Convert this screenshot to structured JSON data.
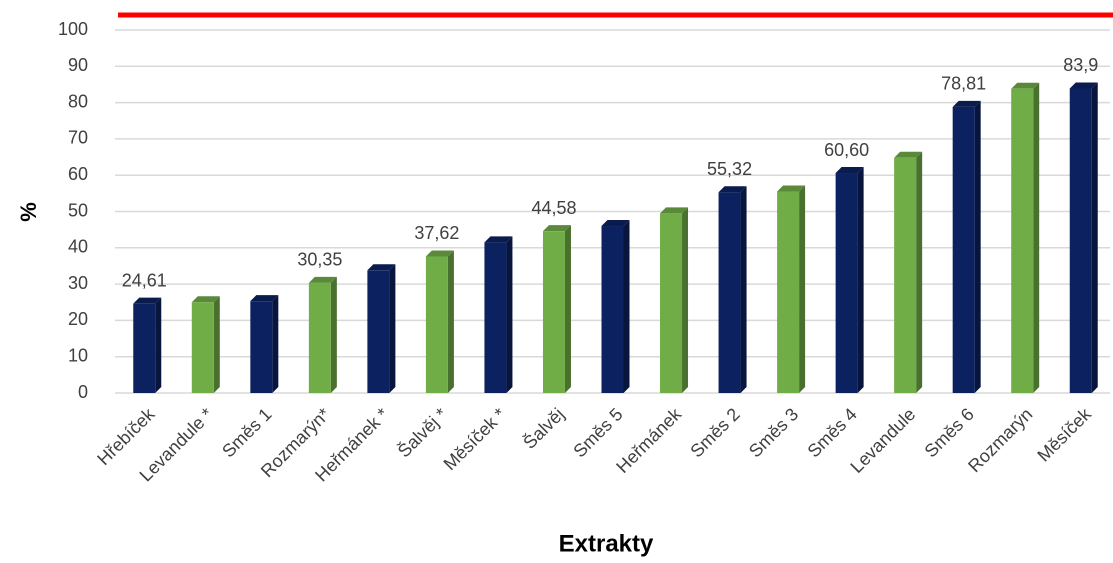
{
  "chart_data": {
    "type": "bar",
    "y_label": "%",
    "x_label": "Extrakty",
    "categories": [
      "Hřebíček",
      "Levandule *",
      "Směs 1",
      "Rozmarýn*",
      "Heřmánek *",
      "Šalvěj *",
      "Měsíček *",
      "Šalvěj",
      "Směs 5",
      "Heřmánek",
      "Směs 2",
      "Směs 3",
      "Směs 4",
      "Levandule",
      "Směs 6",
      "Rozmarýn",
      "Měsíček"
    ],
    "values": [
      24.61,
      25,
      25.3,
      30.35,
      33.8,
      37.62,
      41.5,
      44.58,
      46,
      49.5,
      55.32,
      55.5,
      60.6,
      64.8,
      78.81,
      83.8,
      83.9
    ],
    "value_labels": [
      "24,61",
      null,
      null,
      "30,35",
      null,
      "37,62",
      null,
      "44,58",
      null,
      null,
      "55,32",
      null,
      "60,60",
      null,
      "78,81",
      null,
      "83,9"
    ],
    "colors": [
      "#0c2260",
      "#70ad47",
      "#0c2260",
      "#70ad47",
      "#0c2260",
      "#70ad47",
      "#0c2260",
      "#70ad47",
      "#0c2260",
      "#70ad47",
      "#0c2260",
      "#70ad47",
      "#0c2260",
      "#70ad47",
      "#0c2260",
      "#70ad47",
      "#0c2260"
    ],
    "ylim": [
      0,
      100
    ],
    "yticks": [
      0,
      10,
      20,
      30,
      40,
      50,
      60,
      70,
      80,
      90,
      100
    ],
    "grid": true
  }
}
